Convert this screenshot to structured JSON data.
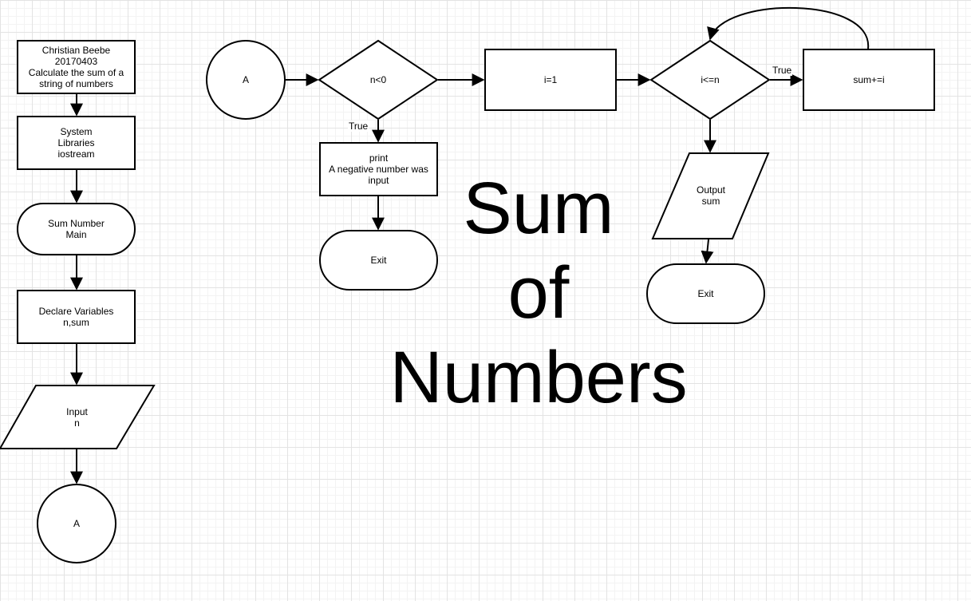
{
  "title_lines": [
    "Sum",
    "of",
    "Numbers"
  ],
  "nodes": {
    "header": "Christian Beebe\n20170403\nCalculate the sum of a\nstring of numbers",
    "libraries": "System\nLibraries\niostream",
    "main": "Sum Number\nMain",
    "declare": "Declare Variables\nn,sum",
    "input": "Input\nn",
    "connector_bottom": "A",
    "connector_top": "A",
    "decision_n": "n<0",
    "print_negative": "print\nA negative number was\ninput",
    "exit_left": "Exit",
    "init_i": "i=1",
    "decision_i": "i<=n",
    "sum_update": "sum+=i",
    "output_sum": "Output\nsum",
    "exit_right": "Exit"
  },
  "edge_labels": {
    "n_true": "True",
    "i_true": "True"
  }
}
